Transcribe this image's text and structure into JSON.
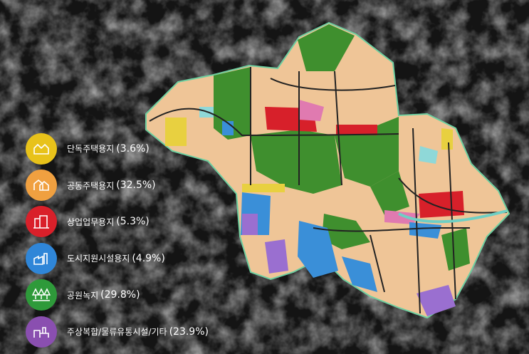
{
  "legend": [
    {
      "label": "단독주택용지",
      "share": "(3.6%)"
    },
    {
      "label": "공동주택용지",
      "share": "(32.5%)"
    },
    {
      "label": "상업업무용지",
      "share": "(5.3%)"
    },
    {
      "label": "도시지원시설용지",
      "share": "(4.9%)"
    },
    {
      "label": "공원녹지",
      "share": "(29.8%)"
    },
    {
      "label": "주상복합/물류유통시설/기타",
      "share": "(23.9%)"
    }
  ]
}
